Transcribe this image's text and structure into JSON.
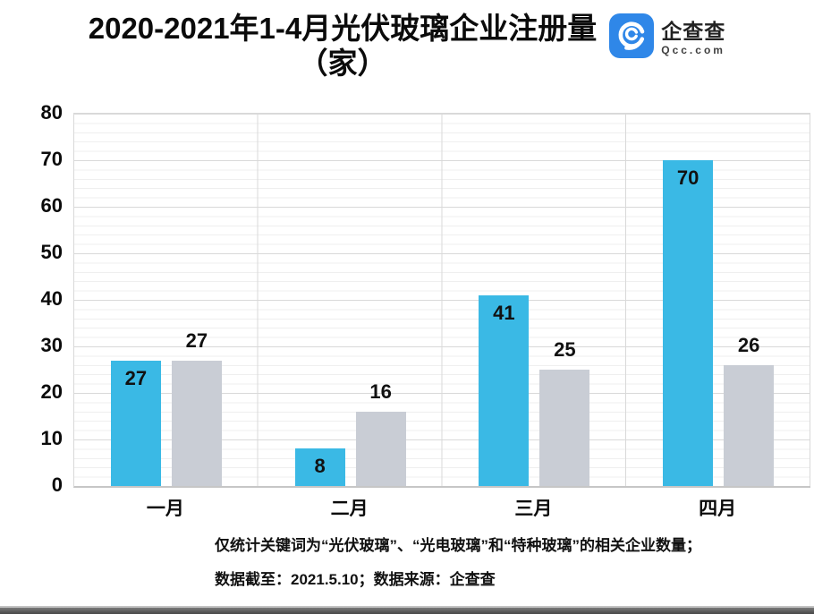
{
  "header": {
    "title_line1": "2020-2021年1-4月光伏玻璃企业注册量",
    "title_line2": "（家）",
    "logo": {
      "brand_cn": "企查查",
      "brand_en": "Qcc.com",
      "tile_color": "#2f87e8"
    }
  },
  "chart_data": {
    "type": "bar",
    "title": "2020-2021年1-4月光伏玻璃企业注册量（家）",
    "categories": [
      "一月",
      "二月",
      "三月",
      "四月"
    ],
    "series": [
      {
        "name": "blue",
        "color": "#3ab9e5",
        "label_position": "inside-top",
        "values": [
          27,
          8,
          41,
          70
        ]
      },
      {
        "name": "gray",
        "color": "#c9cdd5",
        "label_position": "above",
        "values": [
          27,
          16,
          25,
          26
        ]
      }
    ],
    "ylim": [
      0,
      80
    ],
    "yticks": [
      0,
      10,
      20,
      30,
      40,
      50,
      60,
      70,
      80
    ],
    "minor_gridline_step": 2,
    "grid": true,
    "legend_position": "none"
  },
  "footnote": {
    "line1": "仅统计关键词为“光伏玻璃”、“光电玻璃”和“特种玻璃”的相关企业数量；",
    "line2": "数据截至：2021.5.10；数据来源：企查查"
  }
}
